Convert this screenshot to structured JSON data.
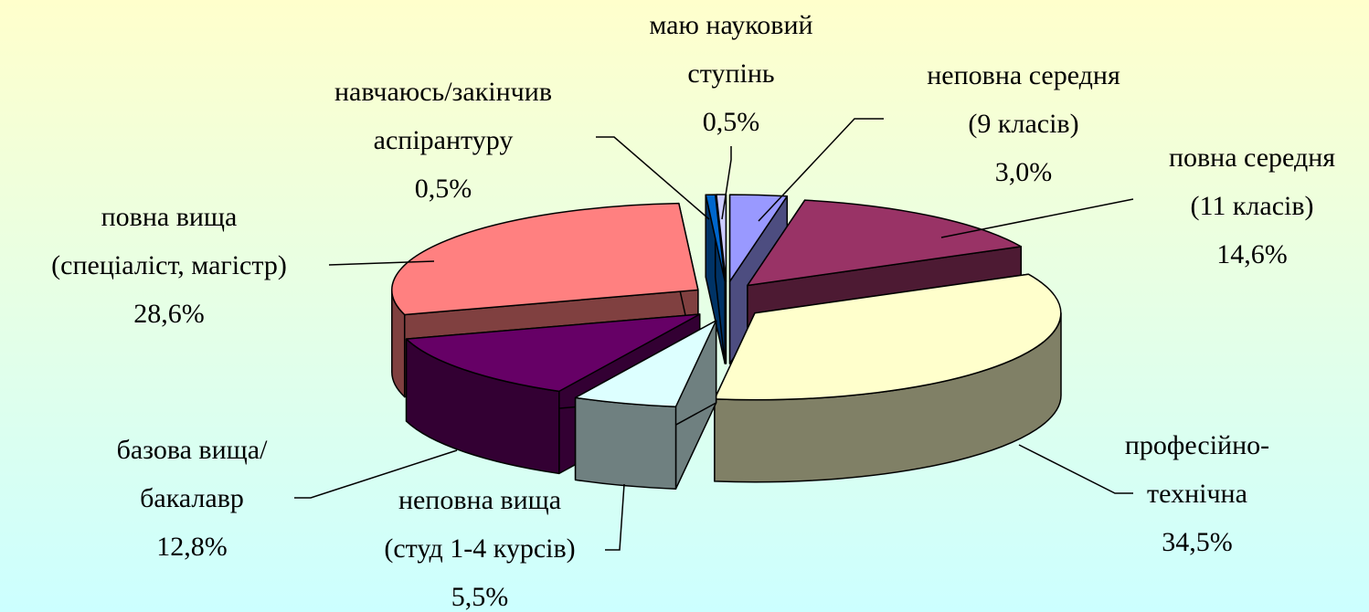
{
  "chart_data": {
    "type": "pie",
    "categories": [
      [
        "неповна середня",
        "(9 класів)"
      ],
      [
        "повна середня",
        "(11 класів)"
      ],
      [
        "професійно-",
        "технічна"
      ],
      [
        "неповна вища",
        "(студ 1-4 курсів)"
      ],
      [
        "базова вища/",
        "бакалавр"
      ],
      [
        "повна вища",
        "(спеціаліст, магістр)"
      ],
      [
        "навчаюсь/закінчив",
        "аспірантуру"
      ],
      [
        "маю науковий",
        "ступінь"
      ]
    ],
    "values": [
      3.0,
      14.6,
      34.5,
      5.5,
      12.8,
      28.6,
      0.5,
      0.5
    ],
    "value_labels": [
      "3,0%",
      "14,6%",
      "34,5%",
      "5,5%",
      "12,8%",
      "28,6%",
      "0,5%",
      "0,5%"
    ],
    "colors": [
      "#9999ff",
      "#993366",
      "#ffffcc",
      "#ddffff",
      "#660066",
      "#ff8080",
      "#0066cc",
      "#ccccff"
    ]
  }
}
